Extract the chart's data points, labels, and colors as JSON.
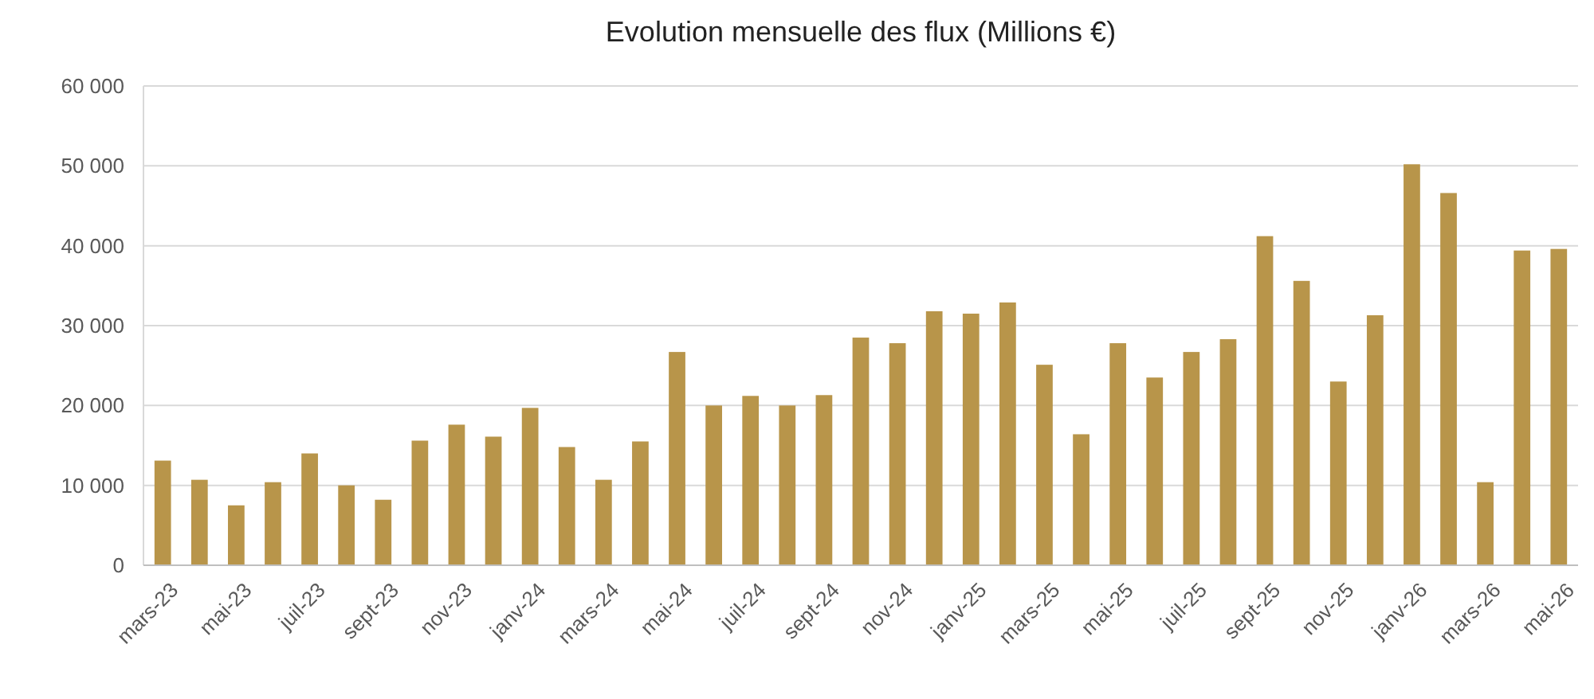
{
  "chart_data": {
    "type": "bar",
    "title": "Evolution mensuelle des flux (Millions €)",
    "categories": [
      "mars-23",
      null,
      "mai-23",
      null,
      "juil-23",
      null,
      "sept-23",
      null,
      "nov-23",
      null,
      "janv-24",
      null,
      "mars-24",
      null,
      "mai-24",
      null,
      "juil-24",
      null,
      "sept-24",
      null,
      "nov-24",
      null,
      "janv-25",
      null,
      "mars-25",
      null,
      "mai-25",
      null,
      "juil-25",
      null,
      "sept-25",
      null,
      "nov-25",
      null,
      "janv-26",
      null,
      "mars-26",
      null,
      "mai-26"
    ],
    "values": [
      13100,
      10700,
      7500,
      10400,
      14000,
      10000,
      8200,
      15600,
      17600,
      16100,
      19700,
      14800,
      10700,
      15500,
      26700,
      20000,
      21200,
      20000,
      21300,
      28500,
      27800,
      31800,
      31500,
      32900,
      25100,
      16400,
      27800,
      23500,
      26700,
      28300,
      41200,
      35600,
      23000,
      31300,
      50200,
      46600,
      10400,
      39400,
      39600
    ],
    "color": "#b8954a",
    "ylim": [
      0,
      60000
    ],
    "yticks": [
      {
        "value": 0,
        "label": "0"
      },
      {
        "value": 10000,
        "label": "10 000"
      },
      {
        "value": 20000,
        "label": "20 000"
      },
      {
        "value": 30000,
        "label": "30 000"
      },
      {
        "value": 40000,
        "label": "40 000"
      },
      {
        "value": 50000,
        "label": "50 000"
      },
      {
        "value": 60000,
        "label": "60 000"
      }
    ],
    "grid": "y"
  }
}
